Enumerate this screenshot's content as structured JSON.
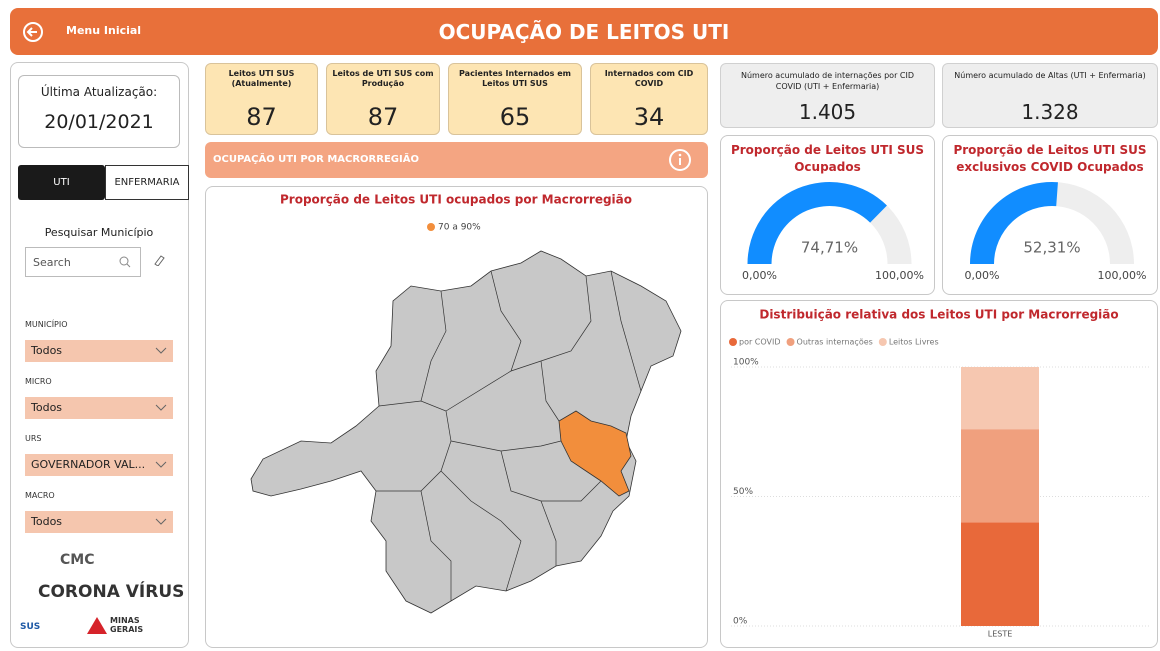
{
  "header": {
    "menu_label": "Menu Inicial",
    "title": "OCUPAÇÃO DE LEITOS UTI"
  },
  "sidebar": {
    "update_label": "Última Atualização:",
    "update_date": "20/01/2021",
    "tabs": [
      "UTI",
      "ENFERMARIA"
    ],
    "search_title": "Pesquisar Município",
    "search_placeholder": "Search",
    "filters": [
      {
        "label": "MUNICÍPIO",
        "value": "Todos"
      },
      {
        "label": "MICRO",
        "value": "Todos"
      },
      {
        "label": "URS",
        "value": "GOVERNADOR VAL..."
      },
      {
        "label": "MACRO",
        "value": "Todos"
      }
    ],
    "logos": [
      "CMC",
      "CORONA VÍRUS",
      "SUS",
      "MINAS GERAIS"
    ]
  },
  "kpis": [
    {
      "label": "Leitos UTI SUS (Atualmente)",
      "value": "87"
    },
    {
      "label": "Leitos de UTI SUS com Produção",
      "value": "87"
    },
    {
      "label": "Pacientes Internados em Leitos UTI SUS",
      "value": "65"
    },
    {
      "label": "Internados com CID COVID",
      "value": "34"
    },
    {
      "label": "Número acumulado de internações por CID COVID (UTI + Enfermaria)",
      "value": "1.405"
    },
    {
      "label": "Número acumulado de Altas (UTI + Enfermaria)",
      "value": "1.328"
    }
  ],
  "section_title": "OCUPAÇÃO UTI POR MACRORREGIÃO",
  "map": {
    "title": "Proporção de Leitos UTI ocupados por Macrorregião",
    "legend": [
      {
        "name": "70 a 90%",
        "color": "#f28e3c"
      }
    ]
  },
  "chart_data": [
    {
      "type": "gauge",
      "title": "Proporção de Leitos UTI SUS Ocupados",
      "values": [
        74.71
      ],
      "value_labels": [
        "74,71%"
      ],
      "ylim": [
        0,
        100
      ],
      "yticks": [
        {
          "value": 0,
          "label": "0,00%"
        },
        {
          "value": 100,
          "label": "100,00%"
        }
      ],
      "color": "#118dff"
    },
    {
      "type": "gauge",
      "title": "Proporção de Leitos UTI SUS exclusivos COVID Ocupados",
      "values": [
        52.31
      ],
      "value_labels": [
        "52,31%"
      ],
      "ylim": [
        0,
        100
      ],
      "yticks": [
        {
          "value": 0,
          "label": "0,00%"
        },
        {
          "value": 100,
          "label": "100,00%"
        }
      ],
      "color": "#118dff"
    },
    {
      "type": "bar",
      "stacked": true,
      "title": "Distribuição relativa dos Leitos UTI por Macrorregião",
      "categories": [
        "LESTE"
      ],
      "series": [
        {
          "name": "por COVID",
          "color": "#e8693a",
          "values": [
            40
          ]
        },
        {
          "name": "Outras internações",
          "color": "#f0a07e",
          "values": [
            36
          ]
        },
        {
          "name": "Leitos Livres",
          "color": "#f6c7b0",
          "values": [
            24
          ]
        }
      ],
      "ylim": [
        0,
        100
      ],
      "yticks": [
        {
          "value": 0,
          "label": "0%"
        },
        {
          "value": 50,
          "label": "50%"
        },
        {
          "value": 100,
          "label": "100%"
        }
      ],
      "grid": true
    }
  ]
}
